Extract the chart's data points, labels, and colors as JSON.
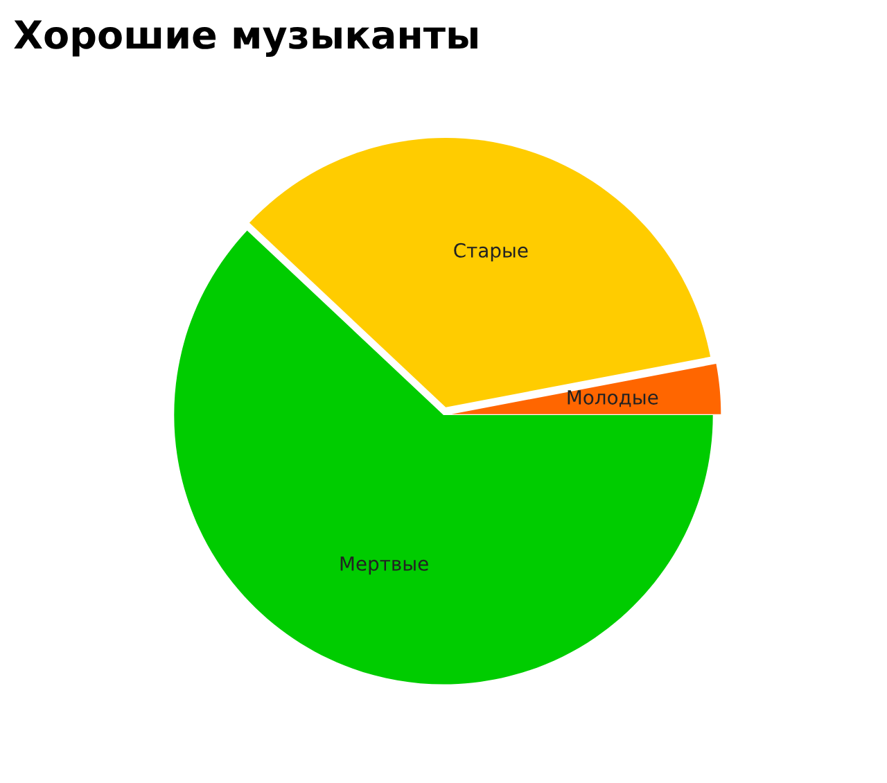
{
  "chart_data": {
    "type": "pie",
    "title": "Хорошие музыканты",
    "categories": [
      "Молодые",
      "Старые",
      "Мертвые"
    ],
    "values": [
      3,
      35,
      62
    ],
    "colors": [
      "#ff6600",
      "#ffcc00",
      "#00cc00"
    ]
  }
}
